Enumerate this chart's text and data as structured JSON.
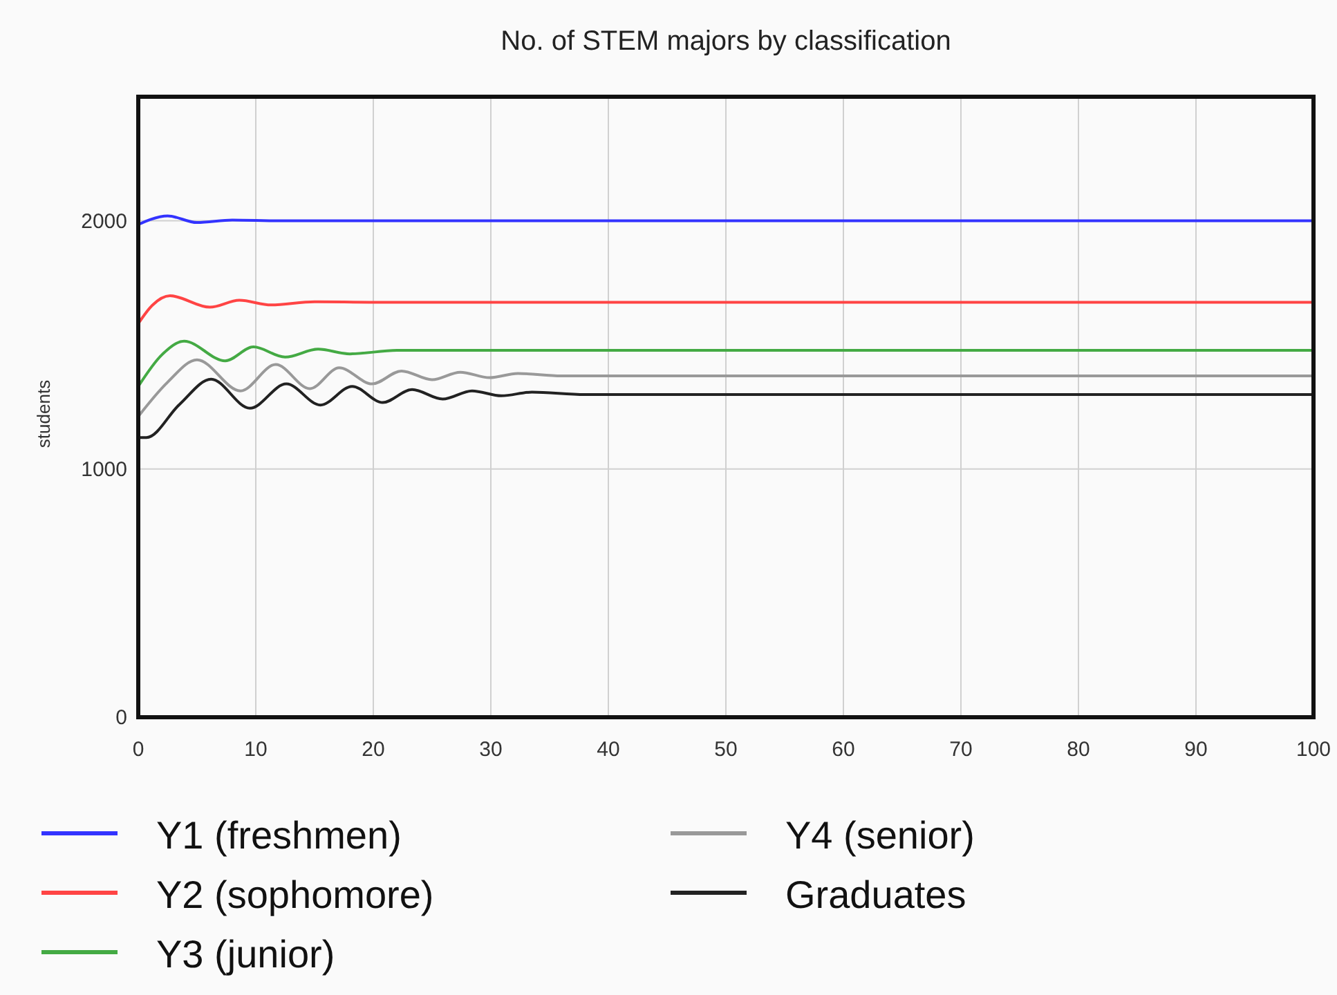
{
  "chart_data": {
    "type": "line",
    "title": "No. of STEM majors by classification",
    "ylabel": "students",
    "xlim": [
      0,
      100
    ],
    "ylim": [
      0,
      2500
    ],
    "xticks": [
      0,
      10,
      20,
      30,
      40,
      50,
      60,
      70,
      80,
      90,
      100
    ],
    "yticks": [
      0,
      1000,
      2000
    ],
    "grid": true,
    "legend": "bottom",
    "line_style": "solid",
    "series": [
      {
        "name": "Y1 (freshmen)",
        "color": "#3333ff",
        "x": [
          0,
          1,
          2.5,
          5,
          8,
          12,
          20,
          100
        ],
        "values": [
          1985,
          2005,
          2020,
          1993,
          2003,
          2000,
          2000,
          2000
        ]
      },
      {
        "name": "Y2 (sophomore)",
        "color": "#ff4444",
        "x": [
          0,
          1.2,
          2.7,
          6.1,
          8.6,
          11.3,
          15,
          20,
          100
        ],
        "values": [
          1586,
          1660,
          1698,
          1652,
          1680,
          1661,
          1674,
          1672,
          1672
        ]
      },
      {
        "name": "Y3 (junior)",
        "color": "#44aa44",
        "x": [
          0,
          2,
          3.9,
          7.4,
          9.8,
          12.5,
          15.3,
          18,
          22,
          30,
          100
        ],
        "values": [
          1333,
          1460,
          1515,
          1436,
          1492,
          1451,
          1483,
          1464,
          1478,
          1478,
          1478
        ]
      },
      {
        "name": "Y4 (senior)",
        "color": "#999999",
        "x": [
          0,
          2.5,
          5,
          8.7,
          11.7,
          14.6,
          17.1,
          19.9,
          22.4,
          25,
          27.4,
          29.9,
          32.3,
          36,
          100
        ],
        "values": [
          1212,
          1350,
          1440,
          1315,
          1421,
          1324,
          1408,
          1343,
          1395,
          1360,
          1390,
          1368,
          1385,
          1375,
          1375
        ]
      },
      {
        "name": "Graduates",
        "color": "#222222",
        "x": [
          0,
          0.7,
          3.5,
          6.2,
          9.5,
          12.6,
          15.5,
          18.2,
          20.8,
          23.3,
          25.9,
          28.4,
          30.9,
          33.5,
          38,
          100
        ],
        "values": [
          1127,
          1127,
          1260,
          1362,
          1245,
          1343,
          1258,
          1333,
          1268,
          1320,
          1282,
          1315,
          1295,
          1310,
          1300,
          1300
        ]
      }
    ]
  }
}
